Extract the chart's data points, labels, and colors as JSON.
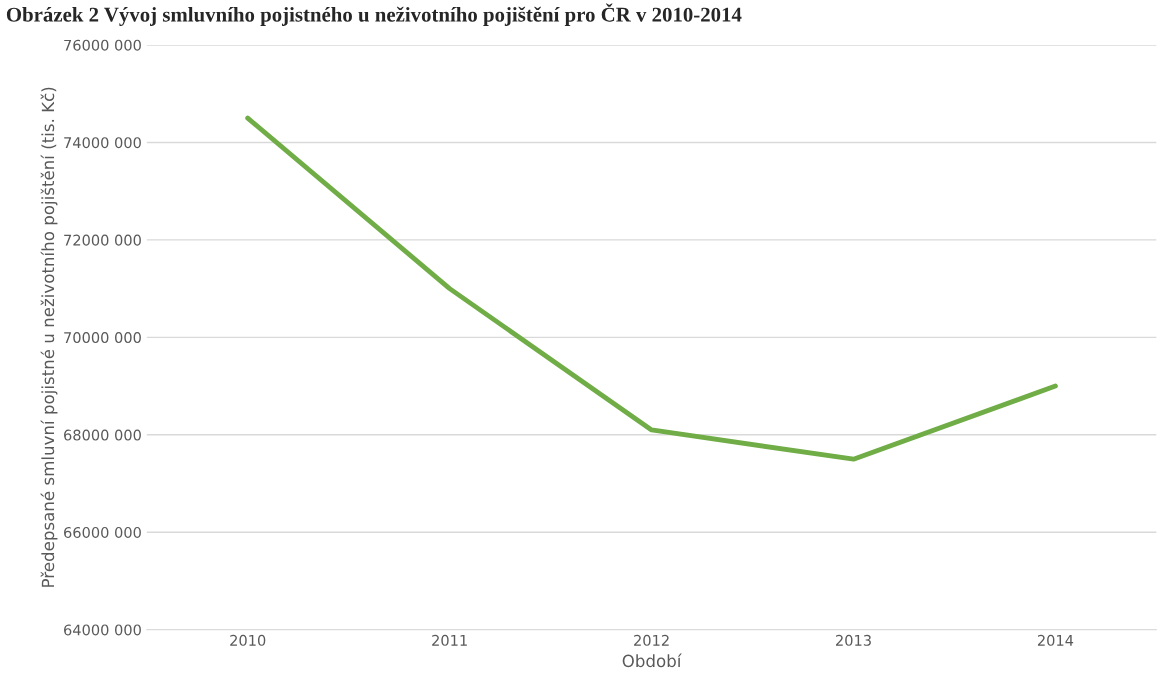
{
  "chart_data": {
    "type": "line",
    "title": "Obrázek 2 Vývoj smluvního pojistného u neživotního pojištění pro ČR v 2010-2014",
    "xlabel": "Období",
    "ylabel": "Předepsané smluvní pojistné u neživotního pojištění (tis. Kč)",
    "categories": [
      "2010",
      "2011",
      "2012",
      "2013",
      "2014"
    ],
    "series": [
      {
        "color": "#70ad47",
        "values": [
          74500000,
          71000000,
          68100000,
          67500000,
          69000000
        ]
      }
    ],
    "ylim": [
      64000000,
      76000000
    ],
    "yticks": [
      {
        "value": 64000000,
        "label": "64000 000"
      },
      {
        "value": 66000000,
        "label": "66000 000"
      },
      {
        "value": 68000000,
        "label": "68000 000"
      },
      {
        "value": 70000000,
        "label": "70000 000"
      },
      {
        "value": 72000000,
        "label": "72000 000"
      },
      {
        "value": 74000000,
        "label": "74000 000"
      },
      {
        "value": 76000000,
        "label": "76000 000"
      }
    ],
    "grid": "y",
    "marker": "none",
    "line_style": "solid"
  }
}
